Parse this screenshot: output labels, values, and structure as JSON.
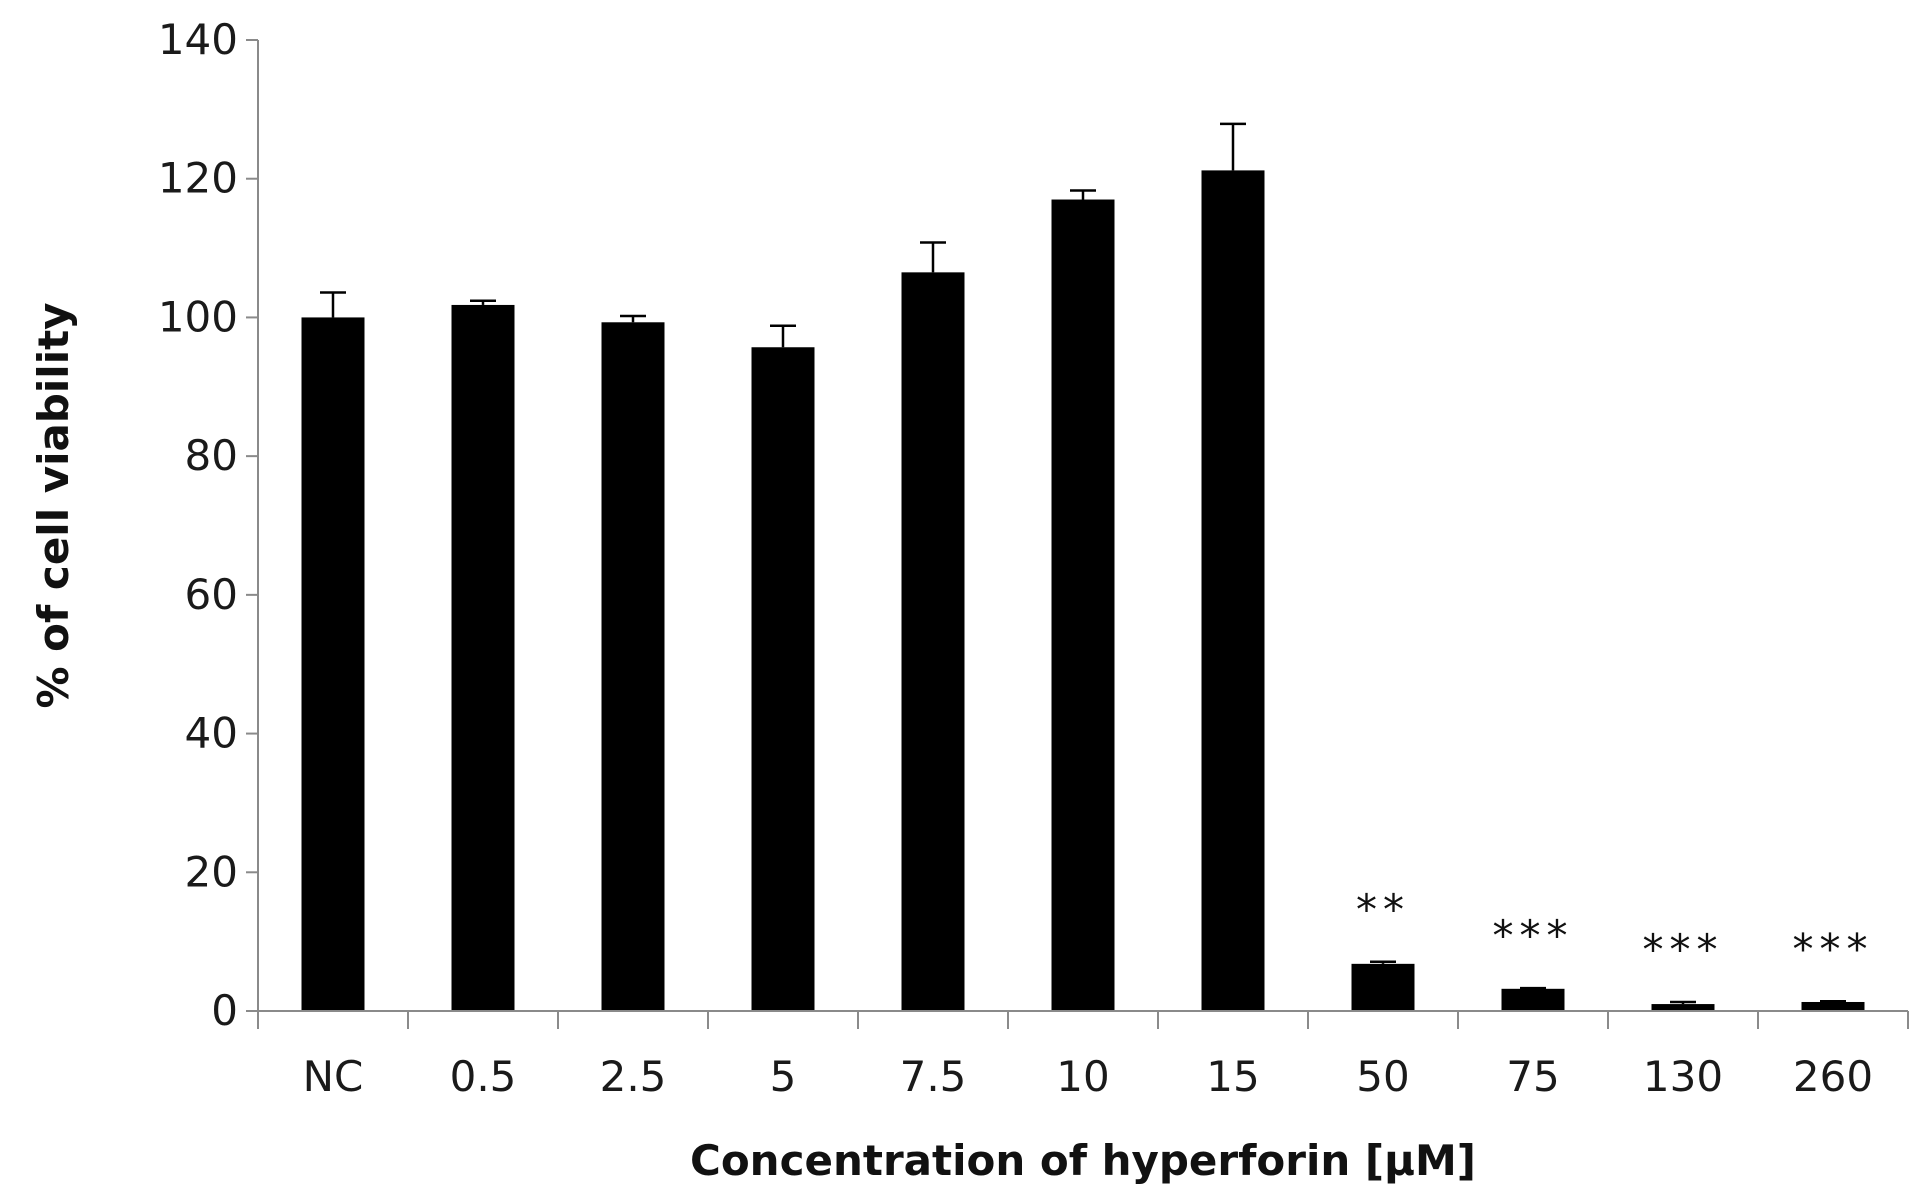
{
  "chart_data": {
    "type": "bar",
    "xlabel": "Concentration of hyperforin [µM]",
    "ylabel": "% of cell viability",
    "ylim": [
      0,
      140
    ],
    "yticks": [
      0,
      20,
      40,
      60,
      80,
      100,
      120,
      140
    ],
    "categories": [
      "NC",
      "0.5",
      "2.5",
      "5",
      "7.5",
      "10",
      "15",
      "50",
      "75",
      "130",
      "260"
    ],
    "values": [
      100,
      101.8,
      99.3,
      95.7,
      106.5,
      117,
      121.2,
      6.8,
      3.2,
      1,
      1.3
    ],
    "errors": [
      3.6,
      0.6,
      0.9,
      3.1,
      4.3,
      1.3,
      6.7,
      0.3,
      0.1,
      0.3,
      0.1
    ],
    "annotations": [
      "",
      "",
      "",
      "",
      "",
      "",
      "",
      "**",
      "***",
      "***",
      "***"
    ],
    "bar_color": "#000000",
    "grid": false,
    "legend": "none"
  }
}
